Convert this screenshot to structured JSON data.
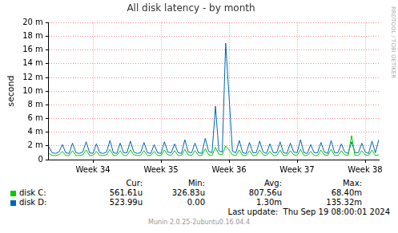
{
  "chart_data": {
    "type": "line",
    "title": "All disk latency - by month",
    "y_label": "second",
    "categories": [
      null,
      null,
      null,
      null,
      null,
      null,
      null,
      null,
      null,
      null,
      null,
      null,
      null,
      "Week 34",
      null,
      null,
      null,
      null,
      null,
      null,
      null,
      null,
      null,
      null,
      null,
      null,
      null,
      null,
      null,
      null,
      null,
      null,
      null,
      "Week 35",
      null,
      null,
      null,
      null,
      null,
      null,
      null,
      null,
      null,
      null,
      null,
      null,
      null,
      null,
      null,
      null,
      null,
      null,
      null,
      "Week 36",
      null,
      null,
      null,
      null,
      null,
      null,
      null,
      null,
      null,
      null,
      null,
      null,
      null,
      null,
      null,
      null,
      null,
      null,
      null,
      "Week 37",
      null,
      null,
      null,
      null,
      null,
      null,
      null,
      null,
      null,
      null,
      null,
      null,
      null,
      null,
      null,
      null,
      null,
      null,
      null,
      "Week 38",
      null,
      null,
      null,
      null
    ],
    "series": [
      {
        "name": "disk C:",
        "color": "#00cc00",
        "values": [
          0.0009,
          0.0006,
          0.0006,
          0.0007,
          0.0012,
          0.0006,
          0.0006,
          0.0013,
          0.0006,
          0.0006,
          0.0007,
          0.0014,
          0.0006,
          0.0006,
          0.0012,
          0.0006,
          0.0006,
          0.0007,
          0.0015,
          0.0006,
          0.0006,
          0.0013,
          0.0006,
          0.0006,
          0.0014,
          0.0007,
          0.0006,
          0.0006,
          0.0013,
          0.0006,
          0.0006,
          0.0012,
          0.0006,
          0.0006,
          0.0014,
          0.0007,
          0.0006,
          0.0013,
          0.0006,
          0.0006,
          0.0015,
          0.0007,
          0.0006,
          0.0013,
          0.0006,
          0.0006,
          0.0016,
          0.0007,
          0.0006,
          0.0018,
          0.0008,
          0.0007,
          0.002,
          0.0014,
          0.0007,
          0.0006,
          0.0014,
          0.0006,
          0.0006,
          0.0013,
          0.0006,
          0.0006,
          0.0014,
          0.0007,
          0.0006,
          0.0012,
          0.0006,
          0.0006,
          0.0014,
          0.0006,
          0.0006,
          0.0013,
          0.0007,
          0.0006,
          0.0015,
          0.0006,
          0.0006,
          0.0012,
          0.0006,
          0.0006,
          0.0014,
          0.0007,
          0.0006,
          0.0015,
          0.0006,
          0.0006,
          0.0013,
          0.0007,
          0.0006,
          0.0035,
          0.0006,
          0.0006,
          0.0013,
          0.0007,
          0.0006,
          0.0014,
          0.0006,
          0.0007
        ]
      },
      {
        "name": "disk D:",
        "color": "#0066b3",
        "values": [
          0.0019,
          0.001,
          0.0009,
          0.0011,
          0.0022,
          0.001,
          0.0009,
          0.0024,
          0.001,
          0.0009,
          0.0011,
          0.0026,
          0.001,
          0.0009,
          0.0023,
          0.001,
          0.0009,
          0.0011,
          0.0028,
          0.001,
          0.0009,
          0.0024,
          0.001,
          0.001,
          0.0027,
          0.0011,
          0.0009,
          0.001,
          0.0025,
          0.001,
          0.0009,
          0.0022,
          0.001,
          0.0009,
          0.0026,
          0.0011,
          0.001,
          0.0023,
          0.001,
          0.0009,
          0.0029,
          0.0011,
          0.001,
          0.0024,
          0.001,
          0.0009,
          0.0031,
          0.0012,
          0.001,
          0.0078,
          0.0013,
          0.0011,
          0.017,
          0.0092,
          0.0012,
          0.001,
          0.0028,
          0.001,
          0.0009,
          0.0025,
          0.001,
          0.001,
          0.0027,
          0.0011,
          0.0009,
          0.0023,
          0.001,
          0.001,
          0.0026,
          0.001,
          0.0009,
          0.0024,
          0.0011,
          0.001,
          0.0029,
          0.001,
          0.0009,
          0.0022,
          0.001,
          0.001,
          0.0025,
          0.0011,
          0.0009,
          0.0028,
          0.001,
          0.001,
          0.0023,
          0.0011,
          0.0009,
          0.0026,
          0.001,
          0.001,
          0.0024,
          0.0011,
          0.0009,
          0.0027,
          0.001,
          0.0029
        ]
      }
    ],
    "ylim": [
      0,
      0.02
    ],
    "yticks": [
      0,
      {
        "value": 0.002,
        "label": "2 m"
      },
      {
        "value": 0.004,
        "label": "4 m"
      },
      {
        "value": 0.006,
        "label": "6 m"
      },
      {
        "value": 0.008,
        "label": "8 m"
      },
      {
        "value": 0.01,
        "label": "10 m"
      },
      {
        "value": 0.012,
        "label": "12 m"
      },
      {
        "value": 0.014,
        "label": "14 m"
      },
      {
        "value": 0.016,
        "label": "16 m"
      },
      {
        "value": 0.018,
        "label": "18 m"
      },
      {
        "value": 0.02,
        "label": "20 m"
      }
    ],
    "grid": true,
    "legend": "bottom"
  },
  "legend_table": {
    "columns": [
      "Cur:",
      "Min:",
      "Avg:",
      "Max:"
    ],
    "rows": [
      [
        "561.61u",
        "326.83u",
        "807.56u",
        "68.40m"
      ],
      [
        "523.99u",
        "0.00",
        "1.30m",
        "135.32m"
      ]
    ]
  },
  "footer": {
    "last_update": "Last update:  Thu Sep 19 08:00:01 2024",
    "version": "Munin 2.0.25-2ubuntu0.16.04.4"
  },
  "watermark": "RRDTOOL / TOBI OETIKER"
}
